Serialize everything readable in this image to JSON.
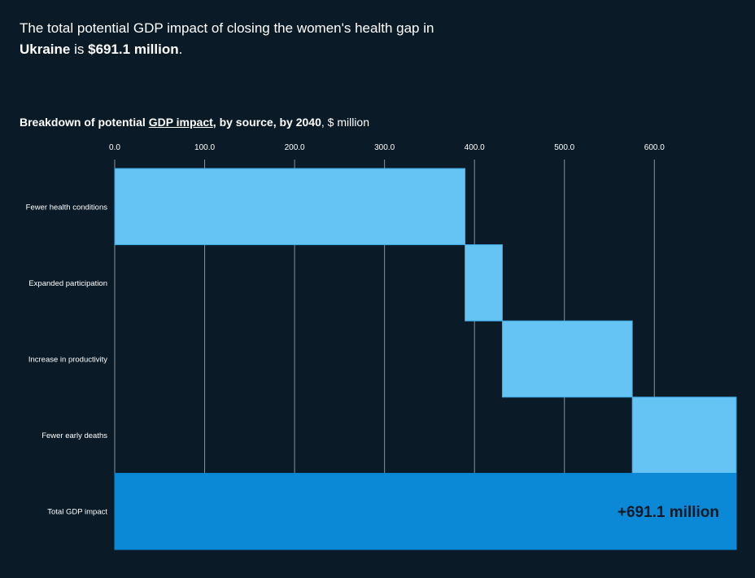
{
  "headline": {
    "part1": "The total potential GDP impact of closing the women's health gap in",
    "country": "Ukraine",
    "part2": " is ",
    "amount": "$691.1 million",
    "part3": "."
  },
  "subtitle": {
    "prefix": "Breakdown of potential ",
    "link": "GDP impact",
    "middle": ", by source, by 2040",
    "unit": ", $ million"
  },
  "colors": {
    "background": "#0a1a26",
    "component_bar": "#66c4f4",
    "total_bar": "#0b88d6",
    "gridline": "#8a939a"
  },
  "chart_data": {
    "type": "bar",
    "subtype": "waterfall",
    "orientation": "horizontal",
    "title": "Breakdown of potential GDP impact, by source, by 2040, $ million",
    "xlabel": "$ million",
    "ylabel": "",
    "xlim": [
      0,
      691.1
    ],
    "xticks": [
      0,
      100,
      200,
      300,
      400,
      500,
      600
    ],
    "xtick_labels": [
      "0.0",
      "100.0",
      "200.0",
      "300.0",
      "400.0",
      "500.0",
      "600.0"
    ],
    "grid": true,
    "categories": [
      "Fewer health conditions",
      "Expanded participation",
      "Increase in productivity",
      "Fewer early deaths",
      "Total GDP impact"
    ],
    "values": [
      389.5,
      41.5,
      144.5,
      115.6,
      691.1
    ],
    "starts": [
      0,
      389.5,
      431.0,
      575.5,
      0
    ],
    "total_label": "+691.1 million"
  }
}
